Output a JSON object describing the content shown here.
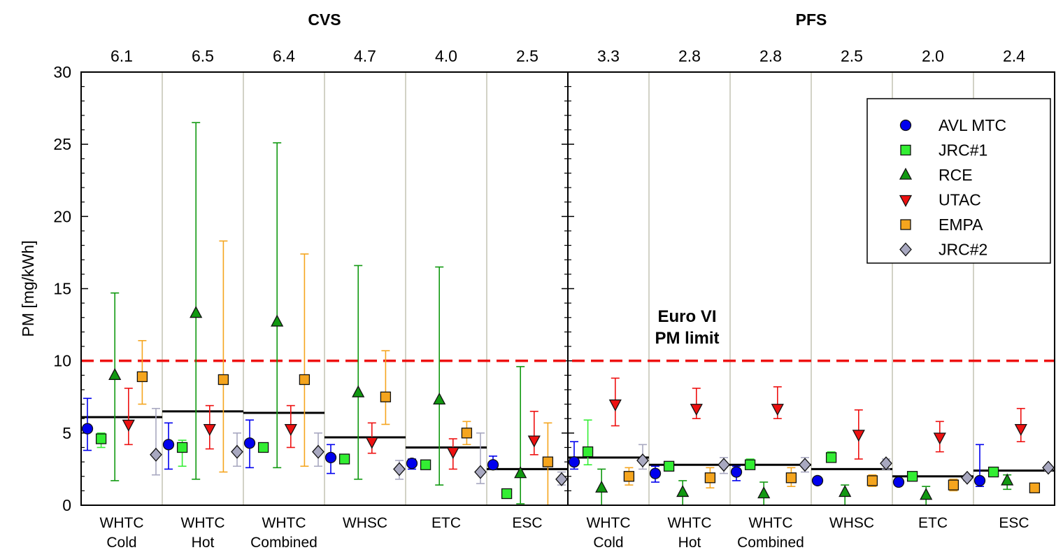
{
  "chart_data": {
    "type": "scatter",
    "ylabel": "PM [mg/kWh]",
    "ylim": [
      0,
      30
    ],
    "yticks": [
      0,
      5,
      10,
      15,
      20,
      25,
      30
    ],
    "groups": [
      {
        "name": "CVS",
        "categories": [
          {
            "label": [
              "WHTC",
              "Cold"
            ],
            "mean": 6.1,
            "mean_label": "6.1"
          },
          {
            "label": [
              "WHTC",
              "Hot"
            ],
            "mean": 6.5,
            "mean_label": "6.5"
          },
          {
            "label": [
              "WHTC",
              "Combined"
            ],
            "mean": 6.4,
            "mean_label": "6.4"
          },
          {
            "label": [
              "WHSC"
            ],
            "mean": 4.7,
            "mean_label": "4.7"
          },
          {
            "label": [
              "ETC"
            ],
            "mean": 4.0,
            "mean_label": "4.0"
          },
          {
            "label": [
              "ESC"
            ],
            "mean": 2.5,
            "mean_label": "2.5"
          }
        ]
      },
      {
        "name": "PFS",
        "categories": [
          {
            "label": [
              "WHTC",
              "Cold"
            ],
            "mean": 3.3,
            "mean_label": "3.3"
          },
          {
            "label": [
              "WHTC",
              "Hot"
            ],
            "mean": 2.8,
            "mean_label": "2.8"
          },
          {
            "label": [
              "WHTC",
              "Combined"
            ],
            "mean": 2.8,
            "mean_label": "2.8"
          },
          {
            "label": [
              "WHSC"
            ],
            "mean": 2.5,
            "mean_label": "2.5"
          },
          {
            "label": [
              "ETC"
            ],
            "mean": 2.0,
            "mean_label": "2.0"
          },
          {
            "label": [
              "ESC"
            ],
            "mean": 2.4,
            "mean_label": "2.4"
          }
        ]
      }
    ],
    "series": [
      {
        "name": "AVL MTC",
        "marker": "circle",
        "color": "#0000ee",
        "err_color": "#0000ee",
        "values": [
          [
            5.3,
            3.8,
            7.4
          ],
          [
            4.2,
            2.5,
            5.7
          ],
          [
            4.3,
            2.6,
            5.9
          ],
          [
            3.3,
            2.2,
            4.2
          ],
          [
            2.9,
            2.5,
            3.2
          ],
          [
            2.8,
            2.5,
            3.4
          ],
          [
            3.0,
            2.5,
            4.4
          ],
          [
            2.2,
            1.6,
            2.7
          ],
          [
            2.3,
            1.7,
            2.7
          ],
          [
            1.7,
            1.7,
            1.7
          ],
          [
            1.6,
            1.6,
            1.6
          ],
          [
            1.7,
            1.3,
            4.2
          ]
        ]
      },
      {
        "name": "JRC#1",
        "marker": "square",
        "color": "#33ee33",
        "err_color": "#33ee33",
        "values": [
          [
            4.6,
            4.0,
            5.0
          ],
          [
            4.0,
            2.7,
            4.5
          ],
          [
            4.0,
            3.7,
            4.3
          ],
          [
            3.2,
            3.0,
            3.4
          ],
          [
            2.8,
            2.6,
            3.0
          ],
          [
            0.8,
            0.8,
            0.8
          ],
          [
            3.7,
            2.8,
            5.9
          ],
          [
            2.7,
            2.6,
            2.8
          ],
          [
            2.8,
            2.5,
            3.2
          ],
          [
            3.3,
            3.0,
            3.7
          ],
          [
            2.0,
            1.9,
            2.1
          ],
          [
            2.3,
            2.1,
            2.4
          ]
        ]
      },
      {
        "name": "RCE",
        "marker": "triangle-up",
        "color": "#119911",
        "err_color": "#119911",
        "values": [
          [
            9.0,
            1.7,
            14.7
          ],
          [
            13.3,
            1.8,
            26.5
          ],
          [
            12.7,
            2.6,
            25.1
          ],
          [
            7.8,
            1.8,
            16.6
          ],
          [
            7.3,
            1.4,
            16.5
          ],
          [
            2.2,
            0.1,
            9.6
          ],
          [
            1.2,
            0.0,
            2.5
          ],
          [
            0.9,
            0.0,
            1.7
          ],
          [
            0.8,
            0.0,
            1.6
          ],
          [
            0.9,
            0.0,
            1.4
          ],
          [
            0.7,
            0.0,
            1.3
          ],
          [
            1.7,
            1.1,
            2.1
          ]
        ]
      },
      {
        "name": "UTAC",
        "marker": "triangle-down",
        "color": "#ee1111",
        "err_color": "#ee1111",
        "values": [
          [
            5.6,
            4.2,
            8.1
          ],
          [
            5.3,
            3.9,
            6.9
          ],
          [
            5.3,
            4.0,
            6.9
          ],
          [
            4.4,
            3.6,
            5.7
          ],
          [
            3.7,
            2.5,
            4.6
          ],
          [
            4.5,
            3.5,
            6.5
          ],
          [
            7.0,
            5.5,
            8.8
          ],
          [
            6.7,
            6.0,
            8.1
          ],
          [
            6.7,
            6.0,
            8.2
          ],
          [
            4.9,
            3.2,
            6.6
          ],
          [
            4.7,
            3.7,
            5.8
          ],
          [
            5.3,
            4.4,
            6.7
          ]
        ]
      },
      {
        "name": "EMPA",
        "marker": "square",
        "color": "#f5a51e",
        "err_color": "#f5a51e",
        "values": [
          [
            8.9,
            7.0,
            11.4
          ],
          [
            8.7,
            2.3,
            18.3
          ],
          [
            8.7,
            2.7,
            17.4
          ],
          [
            7.5,
            5.6,
            10.7
          ],
          [
            5.0,
            4.2,
            5.8
          ],
          [
            3.0,
            0.0,
            5.7
          ],
          [
            2.0,
            1.4,
            2.6
          ],
          [
            1.9,
            1.2,
            2.6
          ],
          [
            1.9,
            1.3,
            2.6
          ],
          [
            1.7,
            1.3,
            2.1
          ],
          [
            1.4,
            1.0,
            1.8
          ],
          [
            1.2,
            0.9,
            1.5
          ]
        ]
      },
      {
        "name": "JRC#2",
        "marker": "diamond",
        "color": "#a8a8c0",
        "err_color": "#a8a8c0",
        "values": [
          [
            3.5,
            2.1,
            6.7
          ],
          [
            3.7,
            2.7,
            5.0
          ],
          [
            3.7,
            2.7,
            5.0
          ],
          [
            2.5,
            1.8,
            3.1
          ],
          [
            2.3,
            1.5,
            5.0
          ],
          [
            1.8,
            1.4,
            2.3
          ],
          [
            3.1,
            2.5,
            4.2
          ],
          [
            2.8,
            2.2,
            3.3
          ],
          [
            2.8,
            2.3,
            3.3
          ],
          [
            2.9,
            2.5,
            3.2
          ],
          [
            1.9,
            1.7,
            2.1
          ],
          [
            2.6,
            2.4,
            2.7
          ]
        ]
      }
    ],
    "reference_line": {
      "y": 10,
      "label": [
        "Euro VI",
        "PM limit"
      ],
      "color": "#ee1111"
    },
    "legend_position": "top-right",
    "grid": false
  }
}
